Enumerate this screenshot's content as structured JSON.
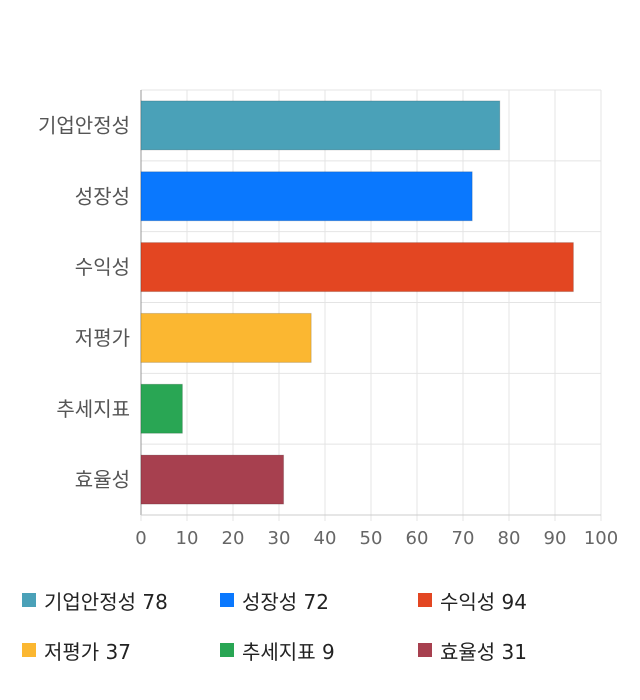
{
  "chart_data": {
    "type": "bar",
    "orientation": "horizontal",
    "categories": [
      "기업안정성",
      "성장성",
      "수익성",
      "저평가",
      "추세지표",
      "효율성"
    ],
    "values": [
      78,
      72,
      94,
      37,
      9,
      31
    ],
    "colors": [
      "#4aa1b8",
      "#0a78fe",
      "#e34622",
      "#fbb731",
      "#29a654",
      "#a7404f"
    ],
    "xlim": [
      0,
      100
    ],
    "xticks": [
      "0",
      "10",
      "20",
      "30",
      "40",
      "50",
      "60",
      "70",
      "80",
      "90",
      "100"
    ],
    "grid": true,
    "legend_position": "bottom",
    "legend": [
      {
        "label": "기업안정성 78"
      },
      {
        "label": "성장성 72"
      },
      {
        "label": "수익성 94"
      },
      {
        "label": "저평가 37"
      },
      {
        "label": "추세지표 9"
      },
      {
        "label": "효율성 31"
      }
    ]
  }
}
